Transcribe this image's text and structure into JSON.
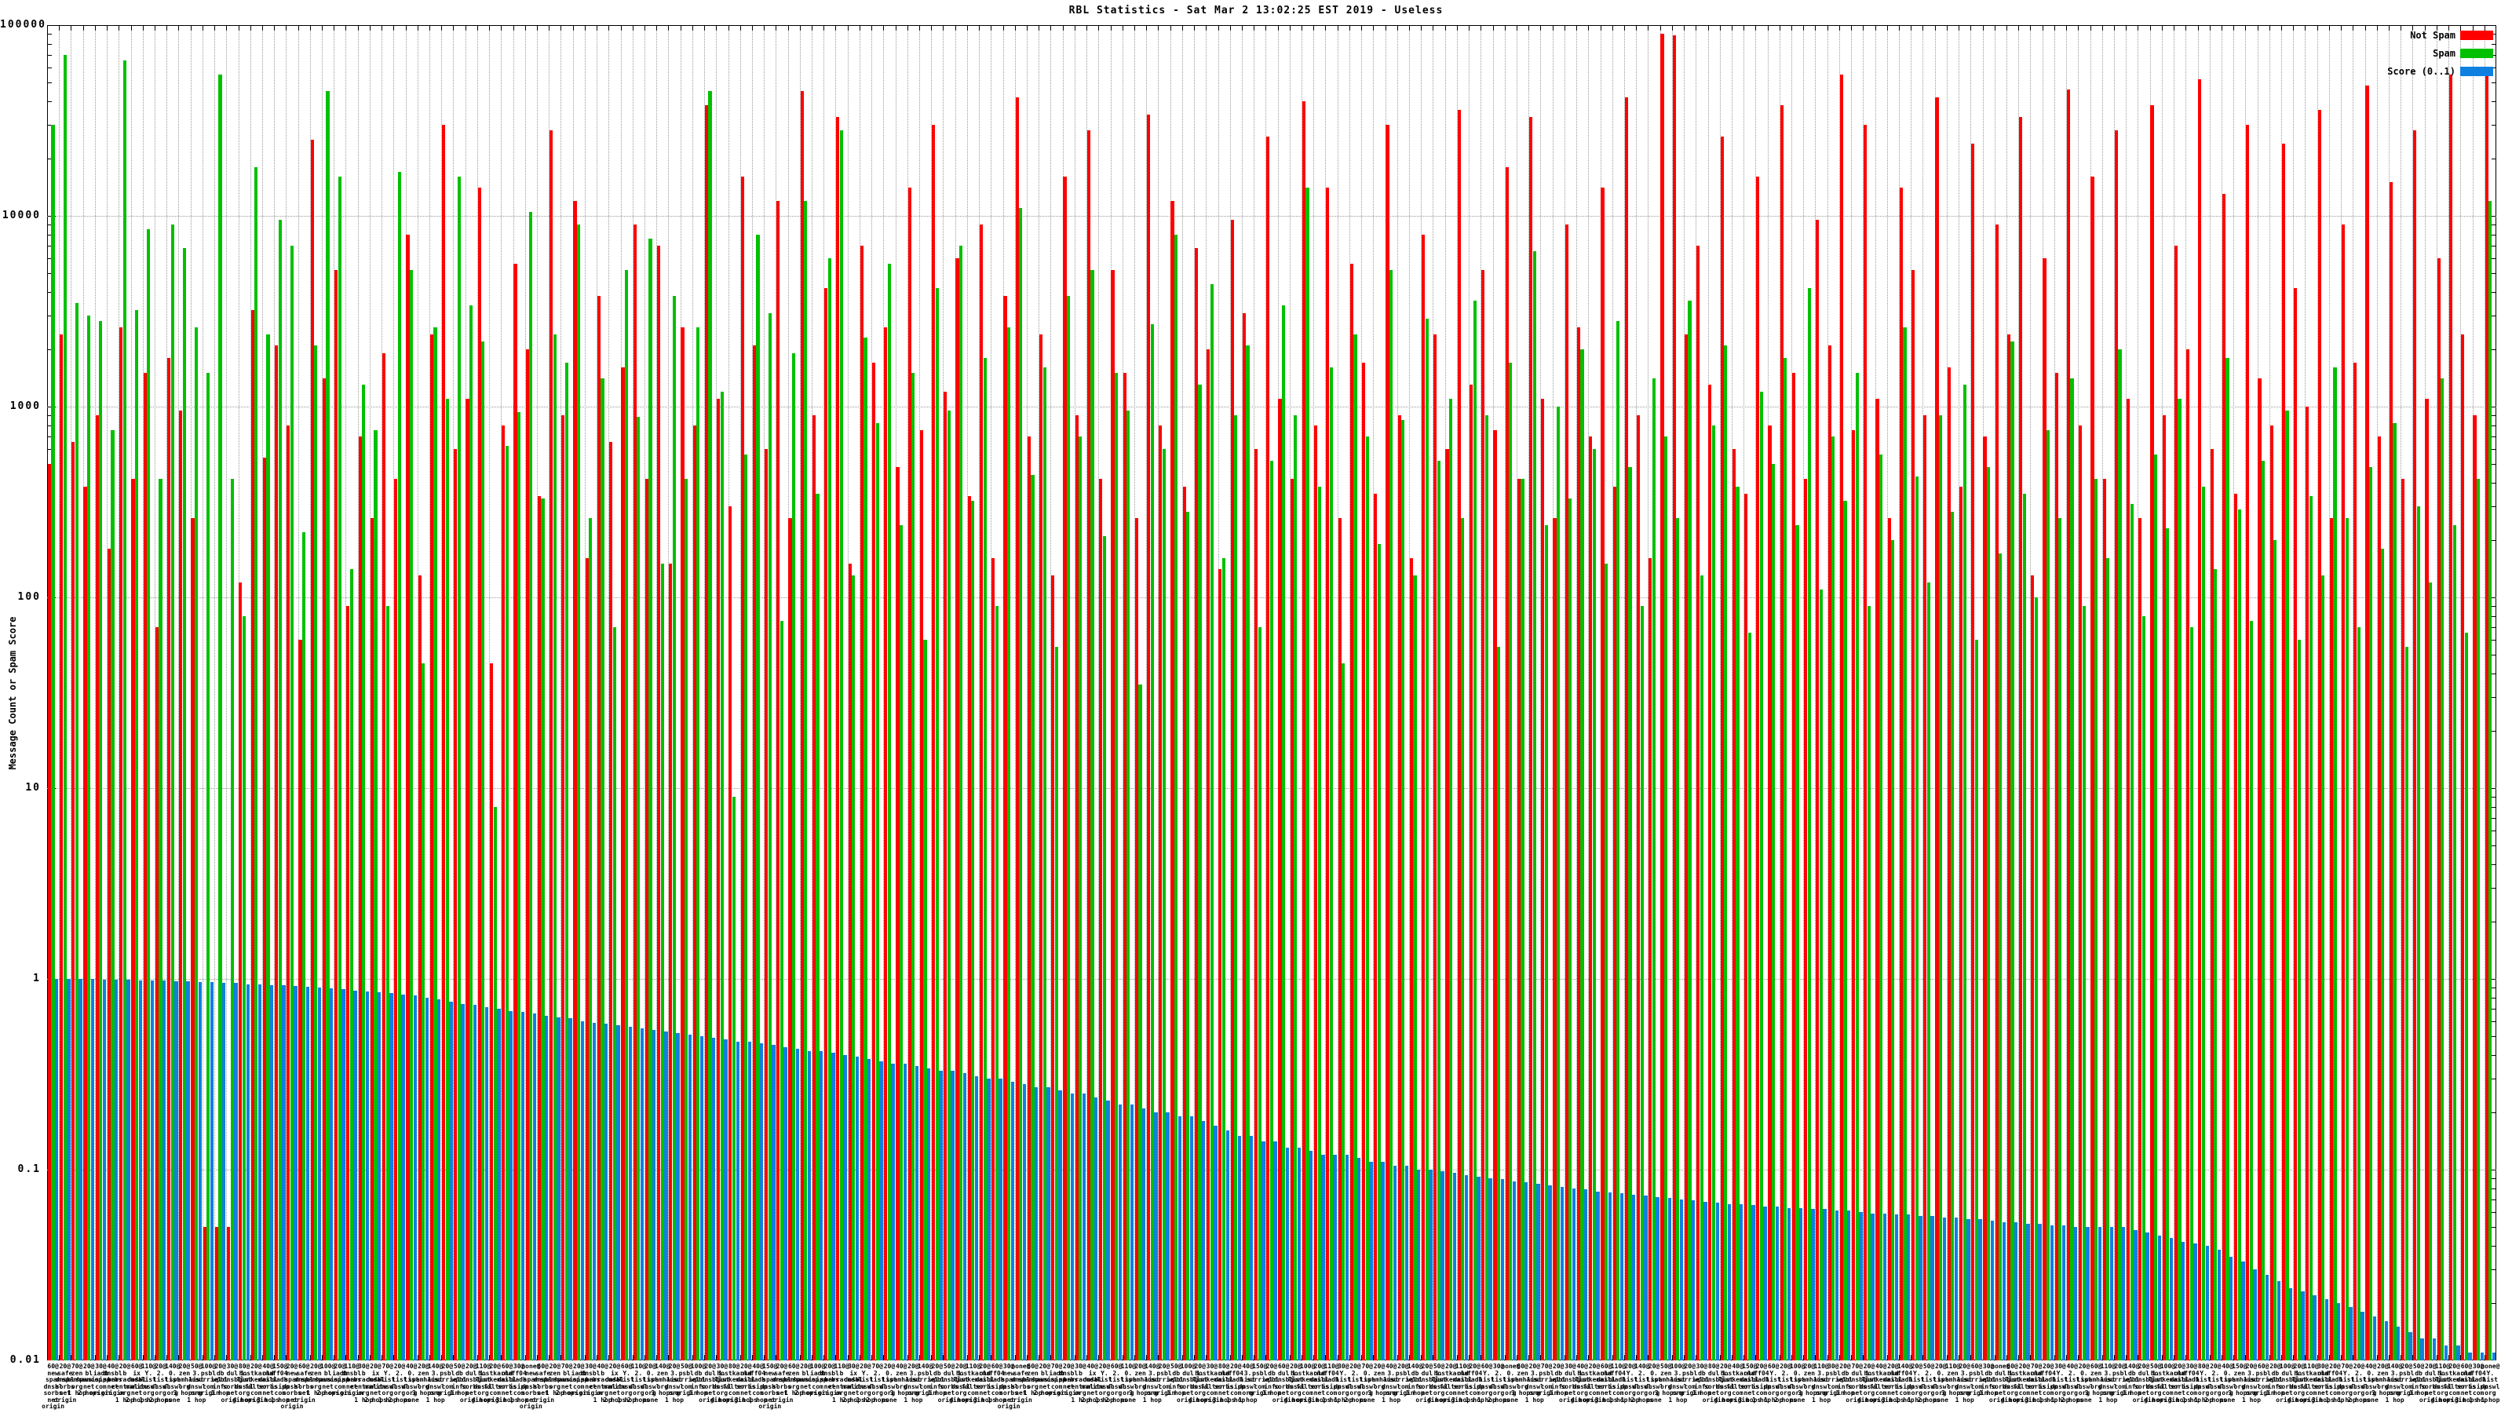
{
  "title": "RBL Statistics - Sat Mar  2 13:02:25 EST 2019 - Useless",
  "y_axis": {
    "label": "Message Count or Spam Score",
    "ticks": [
      "100000",
      "10000",
      "1000",
      "100",
      "10",
      "1",
      "0.1",
      "0.01"
    ]
  },
  "legend": {
    "items": [
      {
        "label": "Not Spam",
        "color": "#ff0000"
      },
      {
        "label": "Spam",
        "color": "#00c000"
      },
      {
        "label": "Score (0..1)",
        "color": "#1080e0"
      }
    ]
  },
  "chart_data": {
    "type": "bar",
    "title": "RBL Statistics - Sat Mar  2 13:02:25 EST 2019 - Useless",
    "ylabel": "Message Count or Spam Score",
    "log_y": true,
    "ylim": [
      0.01,
      100000
    ],
    "grid": true,
    "legend_position": "top-right",
    "n_groups": 205,
    "series": [
      {
        "name": "Not Spam",
        "color": "#ff0000",
        "values": [
          500,
          2400,
          650,
          380,
          900,
          180,
          2600,
          420,
          1500,
          70,
          1800,
          950,
          260,
          0.05,
          0.05,
          0.05,
          120,
          3200,
          540,
          2100,
          800,
          60,
          25000,
          1400,
          5200,
          90,
          700,
          260,
          1900,
          420,
          8000,
          130,
          2400,
          30000,
          600,
          1100,
          14000,
          45,
          800,
          5600,
          2000,
          340,
          28000,
          900,
          12000,
          160,
          3800,
          650,
          1600,
          9000,
          420,
          7000,
          150,
          2600,
          800,
          38000,
          1100,
          300,
          16000,
          2100,
          600,
          12000,
          260,
          45000,
          900,
          4200,
          33000,
          150,
          7000,
          1700,
          2600,
          480,
          14000,
          750,
          30000,
          1200,
          6000,
          340,
          9000,
          160,
          3800,
          42000,
          700,
          2400,
          130,
          16000,
          900,
          28000,
          420,
          5200,
          1500,
          260,
          34000,
          800,
          12000,
          380,
          6800,
          2000,
          140,
          9500,
          3100,
          600,
          26000,
          1100,
          420,
          40000,
          800,
          14000,
          260,
          5600,
          1700,
          350,
          30000,
          900,
          160,
          8000,
          2400,
          600,
          36000,
          1300,
          5200,
          750,
          18000,
          420,
          33000,
          1100,
          260,
          9000,
          2600,
          700,
          14000,
          380,
          42000,
          900,
          160,
          90000,
          88000,
          2400,
          7000,
          1300,
          26000,
          600,
          350,
          16000,
          800,
          38000,
          1500,
          420,
          9500,
          2100,
          55000,
          750,
          30000,
          1100,
          260,
          14000,
          5200,
          900,
          42000,
          1600,
          380,
          24000,
          700,
          9000,
          2400,
          33000,
          130,
          6000,
          1500,
          46000,
          800,
          16000,
          420,
          28000,
          1100,
          260,
          38000,
          900,
          7000,
          2000,
          52000,
          600,
          13000,
          350,
          30000,
          1400,
          800,
          24000,
          4200,
          1000,
          36000,
          260,
          9000,
          1700,
          48000,
          700,
          15000,
          420,
          28000,
          1100,
          6000,
          55000,
          2400,
          900,
          60000
        ]
      },
      {
        "name": "Spam",
        "color": "#00c000",
        "values": [
          30000,
          70000,
          3500,
          3000,
          2800,
          750,
          65000,
          3200,
          8500,
          420,
          9000,
          6800,
          2600,
          1500,
          55000,
          420,
          80,
          18000,
          2400,
          9500,
          7000,
          220,
          2100,
          45000,
          16000,
          140,
          1300,
          750,
          90,
          17000,
          5200,
          45,
          2600,
          1100,
          16000,
          3400,
          2200,
          8,
          620,
          940,
          10500,
          330,
          2400,
          1700,
          9000,
          260,
          1400,
          70,
          5200,
          880,
          7600,
          150,
          3800,
          420,
          2600,
          45000,
          1200,
          9,
          560,
          8000,
          3100,
          75,
          1900,
          12000,
          350,
          6000,
          28000,
          130,
          2300,
          820,
          5600,
          240,
          1500,
          60,
          4200,
          950,
          7000,
          320,
          1800,
          90,
          2600,
          11000,
          440,
          1600,
          55,
          3800,
          700,
          5200,
          210,
          1500,
          950,
          35,
          2700,
          600,
          8000,
          280,
          1300,
          4400,
          160,
          900,
          2100,
          70,
          520,
          3400,
          900,
          14000,
          380,
          1600,
          45,
          2400,
          700,
          190,
          5200,
          850,
          130,
          2900,
          520,
          1100,
          260,
          3600,
          900,
          55,
          1700,
          420,
          6500,
          240,
          1000,
          330,
          2000,
          600,
          150,
          2800,
          480,
          90,
          1400,
          700,
          260,
          3600,
          130,
          800,
          2100,
          380,
          65,
          1200,
          500,
          1800,
          240,
          4200,
          110,
          700,
          320,
          1500,
          90,
          560,
          200,
          2600,
          430,
          120,
          900,
          280,
          1300,
          60,
          480,
          170,
          2200,
          350,
          100,
          750,
          260,
          1400,
          90,
          420,
          160,
          2000,
          310,
          80,
          560,
          230,
          1100,
          70,
          380,
          140,
          1800,
          290,
          75,
          520,
          200,
          950,
          60,
          340,
          130,
          1600,
          260,
          70,
          480,
          180,
          820,
          55,
          300,
          120,
          1400,
          240,
          65,
          420,
          12000
        ]
      },
      {
        "name": "Score (0..1)",
        "color": "#1080e0",
        "values": [
          1.0,
          1.0,
          1.0,
          1.0,
          0.99,
          0.99,
          0.99,
          0.98,
          0.98,
          0.98,
          0.97,
          0.97,
          0.96,
          0.96,
          0.95,
          0.95,
          0.94,
          0.94,
          0.93,
          0.93,
          0.92,
          0.91,
          0.9,
          0.89,
          0.88,
          0.87,
          0.86,
          0.85,
          0.84,
          0.83,
          0.82,
          0.8,
          0.78,
          0.76,
          0.74,
          0.73,
          0.71,
          0.7,
          0.68,
          0.67,
          0.66,
          0.64,
          0.63,
          0.62,
          0.6,
          0.59,
          0.58,
          0.57,
          0.56,
          0.55,
          0.54,
          0.53,
          0.52,
          0.51,
          0.5,
          0.49,
          0.48,
          0.47,
          0.47,
          0.46,
          0.45,
          0.44,
          0.43,
          0.42,
          0.42,
          0.41,
          0.4,
          0.39,
          0.38,
          0.37,
          0.36,
          0.36,
          0.35,
          0.34,
          0.33,
          0.33,
          0.32,
          0.31,
          0.3,
          0.3,
          0.29,
          0.28,
          0.27,
          0.27,
          0.26,
          0.25,
          0.25,
          0.24,
          0.23,
          0.22,
          0.22,
          0.21,
          0.2,
          0.2,
          0.19,
          0.19,
          0.18,
          0.17,
          0.16,
          0.15,
          0.15,
          0.14,
          0.14,
          0.13,
          0.13,
          0.125,
          0.12,
          0.12,
          0.12,
          0.115,
          0.11,
          0.11,
          0.105,
          0.105,
          0.1,
          0.1,
          0.098,
          0.096,
          0.094,
          0.092,
          0.09,
          0.089,
          0.087,
          0.086,
          0.084,
          0.083,
          0.081,
          0.08,
          0.079,
          0.077,
          0.076,
          0.075,
          0.074,
          0.073,
          0.072,
          0.071,
          0.07,
          0.069,
          0.068,
          0.067,
          0.066,
          0.066,
          0.065,
          0.064,
          0.064,
          0.063,
          0.063,
          0.062,
          0.062,
          0.061,
          0.061,
          0.06,
          0.059,
          0.059,
          0.058,
          0.058,
          0.057,
          0.057,
          0.056,
          0.056,
          0.055,
          0.055,
          0.054,
          0.053,
          0.053,
          0.052,
          0.052,
          0.051,
          0.051,
          0.05,
          0.05,
          0.05,
          0.05,
          0.05,
          0.048,
          0.047,
          0.045,
          0.044,
          0.042,
          0.041,
          0.04,
          0.038,
          0.035,
          0.033,
          0.03,
          0.028,
          0.026,
          0.024,
          0.023,
          0.022,
          0.021,
          0.02,
          0.019,
          0.018,
          0.017,
          0.016,
          0.015,
          0.014,
          0.013,
          0.013,
          0.012,
          0.012,
          0.011,
          0.011,
          0.011
        ]
      }
    ],
    "x_labels": {
      "note": "205 per-bar multi-line tick labels; in the source they overlap into an illegible band. Reconstructed from readable fragments (weight number + RBL host parts + hop qualifier).",
      "nums": [
        "60",
        "20",
        "70",
        "20",
        "30",
        "40",
        "20",
        "60",
        "110",
        "20",
        "140",
        "20",
        "50",
        "100",
        "20",
        "30",
        "80",
        "20",
        "40",
        "150",
        "20",
        "60",
        "20",
        "100",
        "20",
        "110",
        "30",
        "20",
        "70",
        "20",
        "40",
        "20",
        "140",
        "20",
        "50",
        "20",
        "110",
        "20",
        "60",
        "30",
        "none"
      ],
      "stacks": [
        [
          "new",
          "spam",
          "dnsbl",
          "sorbs",
          "net",
          "origin"
        ],
        [
          "safe",
          "dnsbl",
          "sorbs",
          "net",
          "origin"
        ],
        [
          "zen",
          "spamhaus",
          "org",
          "1 hop"
        ],
        [
          "bl",
          "spamcop",
          "net",
          "2 hops"
        ],
        [
          "iadb",
          "isipp",
          "com",
          "origin"
        ],
        [
          "dnsbl",
          "sorbs",
          "net",
          "origin"
        ],
        [
          "b",
          "barracuda",
          "central",
          "org",
          "1 hop"
        ],
        [
          "ix",
          "dnsbl",
          "manitu",
          "net",
          "2 hops"
        ],
        [
          "Y.",
          "list",
          "dnswl",
          "org",
          "1 hop"
        ],
        [
          "2.",
          "list",
          "dnswl",
          "org",
          "2 hops"
        ],
        [
          "0.",
          "list",
          "dnswl",
          "org",
          "none"
        ],
        [
          "zen",
          "spamhaus",
          "org",
          "3 hops"
        ],
        [
          "3.",
          "list",
          "dnswl",
          "org",
          "1 hop"
        ],
        [
          "psbl",
          "surriel",
          "com",
          "origin"
        ],
        [
          "db",
          "wpbl",
          "info",
          "1 hop"
        ],
        [
          "dul",
          "dnsbl",
          "sorbs",
          "net",
          "origin"
        ],
        [
          "1.",
          "list",
          "dnswl",
          "org",
          "4 hops"
        ],
        [
          "hostkarma",
          "junkemail",
          "filter",
          "com",
          "origin"
        ],
        [
          "old",
          "dnsbl",
          "sorbs",
          "net",
          "3 hops"
        ],
        [
          "ff04",
          "iadb",
          "isipp",
          "com",
          "1 hop"
        ]
      ]
    }
  }
}
